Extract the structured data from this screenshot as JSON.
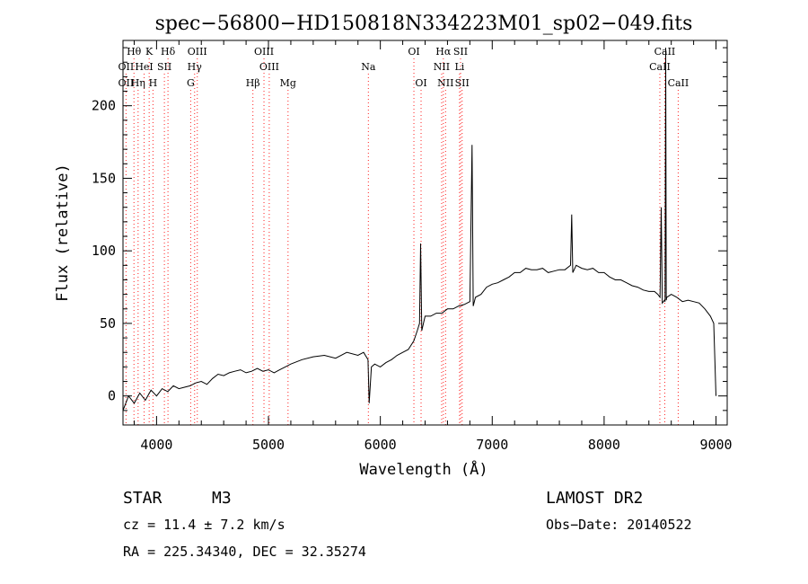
{
  "chart_data": {
    "type": "line",
    "title": "spec−56800−HD150818N334223M01_sp02−049.fits",
    "xlabel": "Wavelength (Å)",
    "ylabel": "Flux (relative)",
    "xlim": [
      3700,
      9100
    ],
    "ylim": [
      -20,
      245
    ],
    "xticks": [
      4000,
      5000,
      6000,
      7000,
      8000,
      9000
    ],
    "yticks": [
      0,
      50,
      100,
      150,
      200
    ],
    "grid": false,
    "series": [
      {
        "x": [
          3700,
          3750,
          3800,
          3850,
          3900,
          3950,
          4000,
          4050,
          4100,
          4150,
          4200,
          4250,
          4300,
          4350,
          4400,
          4450,
          4500,
          4550,
          4600,
          4650,
          4700,
          4750,
          4800,
          4850,
          4900,
          4950,
          5000,
          5050,
          5100,
          5150,
          5200,
          5300,
          5400,
          5500,
          5600,
          5700,
          5800,
          5850,
          5890,
          5900,
          5920,
          5950,
          6000,
          6050,
          6100,
          6150,
          6200,
          6250,
          6300,
          6330,
          6350,
          6360,
          6370,
          6400,
          6450,
          6500,
          6550,
          6600,
          6650,
          6700,
          6750,
          6800,
          6820,
          6830,
          6850,
          6900,
          6950,
          7000,
          7050,
          7100,
          7150,
          7200,
          7250,
          7300,
          7350,
          7400,
          7450,
          7500,
          7550,
          7600,
          7650,
          7700,
          7710,
          7720,
          7750,
          7800,
          7850,
          7900,
          7950,
          8000,
          8050,
          8100,
          8150,
          8200,
          8250,
          8300,
          8350,
          8400,
          8450,
          8480,
          8500,
          8510,
          8520,
          8540,
          8545,
          8550,
          8555,
          8560,
          8600,
          8650,
          8700,
          8750,
          8800,
          8850,
          8900,
          8950,
          8980,
          9000
        ],
        "y": [
          -10,
          0,
          -5,
          2,
          -3,
          4,
          0,
          5,
          3,
          7,
          5,
          6,
          7,
          9,
          10,
          8,
          12,
          15,
          14,
          16,
          17,
          18,
          16,
          17,
          19,
          17,
          18,
          16,
          18,
          20,
          22,
          25,
          27,
          28,
          26,
          30,
          28,
          30,
          25,
          -5,
          20,
          22,
          20,
          23,
          25,
          28,
          30,
          32,
          38,
          45,
          50,
          105,
          45,
          55,
          55,
          57,
          57,
          60,
          60,
          62,
          63,
          65,
          173,
          62,
          68,
          70,
          75,
          77,
          78,
          80,
          82,
          85,
          85,
          88,
          87,
          87,
          88,
          85,
          86,
          87,
          87,
          90,
          125,
          85,
          90,
          88,
          87,
          88,
          85,
          85,
          82,
          80,
          80,
          78,
          76,
          75,
          73,
          72,
          72,
          70,
          68,
          130,
          64,
          66,
          65,
          240,
          66,
          68,
          70,
          68,
          65,
          66,
          65,
          64,
          60,
          55,
          50,
          0
        ]
      }
    ],
    "emission_lines": [
      {
        "label": "Hθ",
        "wl": 3798,
        "row": 1
      },
      {
        "label": "K",
        "wl": 3934,
        "row": 1
      },
      {
        "label": "Hδ",
        "wl": 4102,
        "row": 1
      },
      {
        "label": "OIII",
        "wl": 4364,
        "row": 1
      },
      {
        "label": "OIII",
        "wl": 4960,
        "row": 1
      },
      {
        "label": "OI",
        "wl": 6300,
        "row": 1
      },
      {
        "label": "Hα",
        "wl": 6563,
        "row": 1
      },
      {
        "label": "SII",
        "wl": 6717,
        "row": 1
      },
      {
        "label": "CaII",
        "wl": 8542,
        "row": 1
      },
      {
        "label": "OII",
        "wl": 3727,
        "row": 2
      },
      {
        "label": "HeI",
        "wl": 3889,
        "row": 2
      },
      {
        "label": "SII",
        "wl": 4070,
        "row": 2
      },
      {
        "label": "Hγ",
        "wl": 4340,
        "row": 2
      },
      {
        "label": "OIII",
        "wl": 5007,
        "row": 2
      },
      {
        "label": "Na",
        "wl": 5893,
        "row": 2
      },
      {
        "label": "NII",
        "wl": 6548,
        "row": 2
      },
      {
        "label": "Li",
        "wl": 6708,
        "row": 2
      },
      {
        "label": "CaII",
        "wl": 8498,
        "row": 2
      },
      {
        "label": "OII",
        "wl": 3727,
        "row": 3
      },
      {
        "label": "Hη",
        "wl": 3835,
        "row": 3
      },
      {
        "label": "H",
        "wl": 3968,
        "row": 3
      },
      {
        "label": "G",
        "wl": 4305,
        "row": 3
      },
      {
        "label": "Hβ",
        "wl": 4861,
        "row": 3
      },
      {
        "label": "Mg",
        "wl": 5175,
        "row": 3
      },
      {
        "label": "OI",
        "wl": 6364,
        "row": 3
      },
      {
        "label": "NII",
        "wl": 6583,
        "row": 3
      },
      {
        "label": "SII",
        "wl": 6731,
        "row": 3
      },
      {
        "label": "CaII",
        "wl": 8662,
        "row": 3
      }
    ]
  },
  "info": {
    "objtype": "STAR",
    "subclass": "M3",
    "survey": "LAMOST DR2",
    "cz": "cz = 11.4 ± 7.2 km/s",
    "obsdate": "Obs−Date: 20140522",
    "radec": "RA = 225.34340, DEC =  32.35274"
  }
}
